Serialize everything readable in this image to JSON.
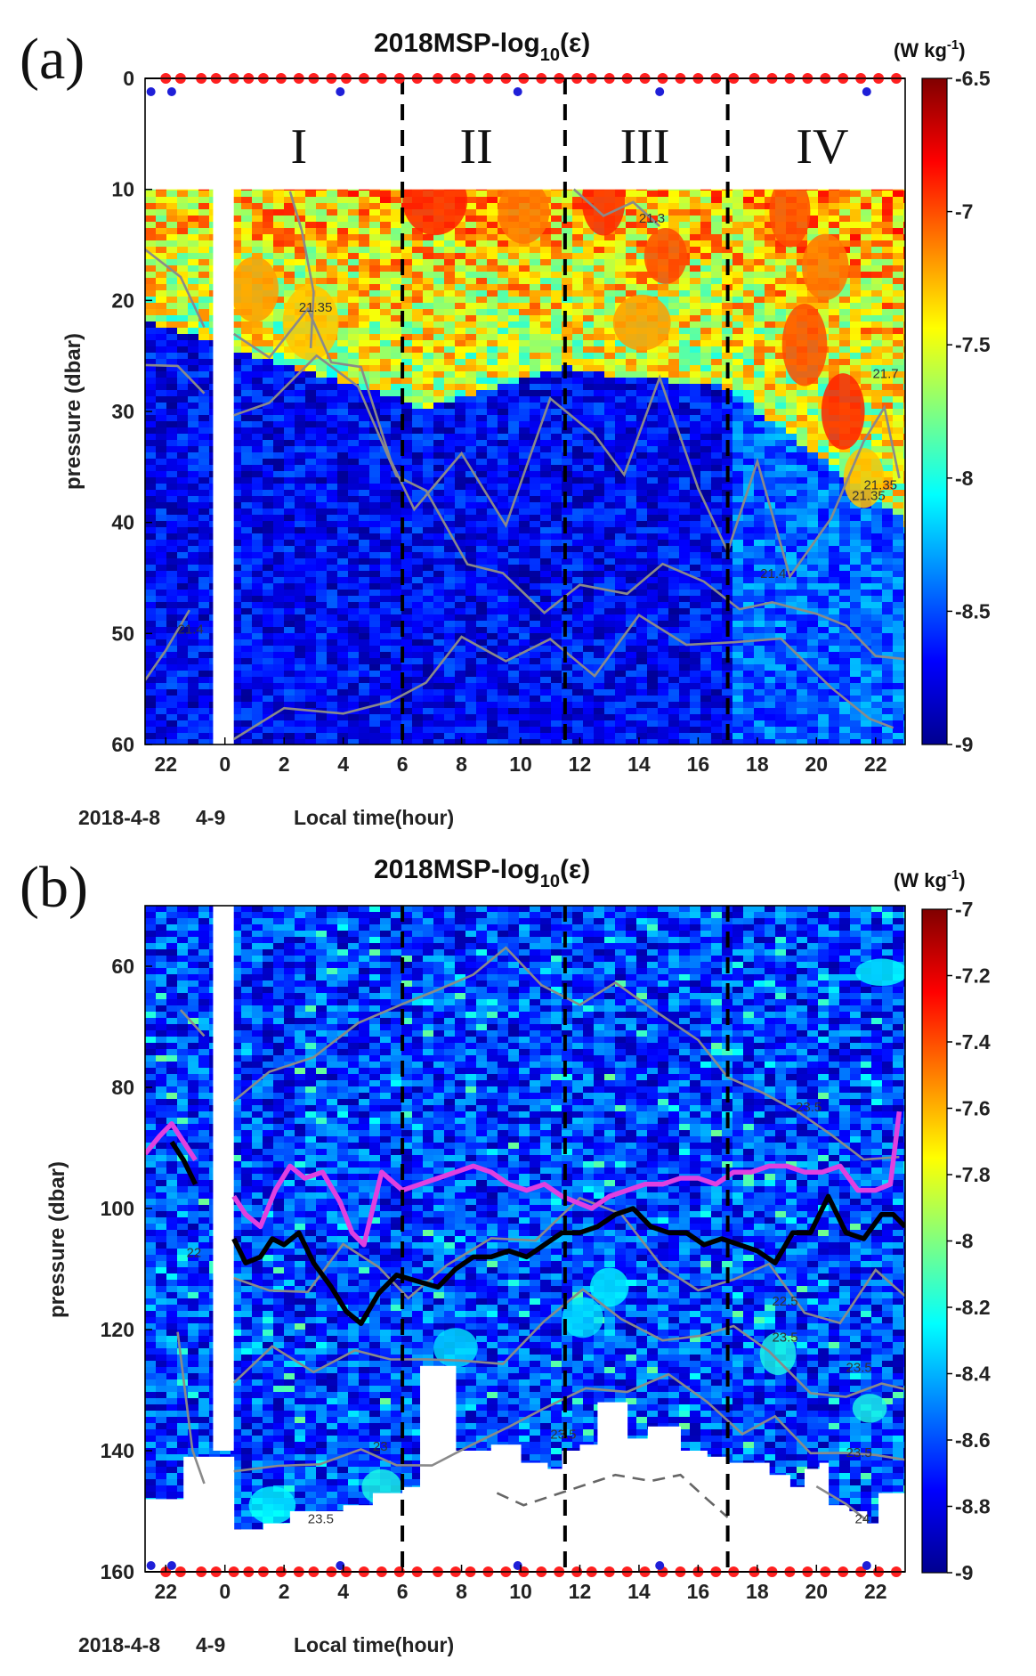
{
  "chart_data": [
    {
      "type": "heatmap",
      "panel_label": "(a)",
      "title": "2018MSP-log",
      "title_sub": "10",
      "title_suffix": "(ε)",
      "xlabel": "Local time(hour)",
      "date_labels": [
        "2018-4-8",
        "4-9"
      ],
      "ylabel": "pressure (dbar)",
      "xlim": [
        21.3,
        47.0
      ],
      "ylim": [
        0,
        60
      ],
      "x_ticks": [
        22,
        24,
        26,
        28,
        30,
        32,
        34,
        36,
        38,
        40,
        42,
        44,
        46
      ],
      "x_tick_labels": [
        "22",
        "0",
        "2",
        "4",
        "6",
        "8",
        "10",
        "12",
        "14",
        "16",
        "18",
        "20",
        "22"
      ],
      "y_ticks": [
        0,
        10,
        20,
        30,
        40,
        50,
        60
      ],
      "y_tick_labels": [
        "0",
        "10",
        "20",
        "30",
        "40",
        "50",
        "60"
      ],
      "regions": [
        "I",
        "II",
        "III",
        "IV"
      ],
      "region_centers": [
        26.5,
        32.5,
        38.2,
        44.2
      ],
      "dashed_lines_x": [
        30.0,
        35.5,
        41.0
      ],
      "data_gap_x": [
        23.6,
        24.3
      ],
      "colorbar": {
        "unit_prefix": "(W kg",
        "unit_sup": "-1",
        "unit_suffix": ")",
        "range": [
          -9,
          -6.5
        ],
        "ticks": [
          -6.5,
          -7,
          -7.5,
          -8,
          -8.5,
          -9
        ],
        "tick_labels": [
          "-6.5",
          "-7",
          "-7.5",
          "-8",
          "-8.5",
          "-9"
        ]
      },
      "contour_labels": [
        "21.3",
        "21.35",
        "21.35",
        "21.35",
        "21.4",
        "21.7",
        "21.4"
      ],
      "red_markers_x": [
        22.0,
        22.5,
        23.2,
        23.7,
        24.3,
        24.8,
        25.3,
        25.9,
        26.5,
        27.0,
        27.6,
        28.1,
        28.7,
        29.3,
        29.9,
        30.5,
        31.2,
        31.8,
        32.3,
        32.9,
        33.5,
        34.1,
        34.7,
        35.3,
        35.9,
        36.4,
        37.0,
        37.6,
        38.2,
        38.8,
        39.4,
        40.0,
        40.6,
        41.2,
        41.9,
        42.5,
        43.1,
        43.7,
        44.3,
        44.9,
        45.5,
        46.1,
        46.7
      ],
      "blue_markers_x": [
        21.5,
        22.2,
        27.9,
        33.9,
        38.7,
        45.7
      ]
    },
    {
      "type": "heatmap",
      "panel_label": "(b)",
      "title": "2018MSP-log",
      "title_sub": "10",
      "title_suffix": "(ε)",
      "xlabel": "Local time(hour)",
      "date_labels": [
        "2018-4-8",
        "4-9"
      ],
      "ylabel": "pressure (dbar)",
      "xlim": [
        21.3,
        47.0
      ],
      "ylim": [
        50,
        160
      ],
      "x_ticks": [
        22,
        24,
        26,
        28,
        30,
        32,
        34,
        36,
        38,
        40,
        42,
        44,
        46
      ],
      "x_tick_labels": [
        "22",
        "0",
        "2",
        "4",
        "6",
        "8",
        "10",
        "12",
        "14",
        "16",
        "18",
        "20",
        "22"
      ],
      "y_ticks": [
        60,
        80,
        100,
        120,
        140,
        160
      ],
      "y_tick_labels": [
        "60",
        "80",
        "100",
        "120",
        "140",
        "160"
      ],
      "dashed_lines_x": [
        30.0,
        35.5,
        41.0
      ],
      "data_gap_x": [
        23.6,
        24.3
      ],
      "colorbar": {
        "unit_prefix": "(W kg",
        "unit_sup": "-1",
        "unit_suffix": ")",
        "range": [
          -9,
          -7
        ],
        "ticks": [
          -7,
          -7.2,
          -7.4,
          -7.6,
          -7.8,
          -8,
          -8.2,
          -8.4,
          -8.6,
          -8.8,
          -9
        ],
        "tick_labels": [
          "-7",
          "-7.2",
          "-7.4",
          "-7.6",
          "-7.8",
          "-8",
          "-8.2",
          "-8.4",
          "-8.6",
          "-8.8",
          "-9"
        ]
      },
      "contour_labels": [
        "22",
        "23.5",
        "23.5",
        "23",
        "23.5",
        "23.5",
        "24",
        "22.5",
        "23.5",
        "23.5"
      ],
      "series": [
        {
          "name": "magenta-depth-line",
          "color": "#e040e0",
          "x": [
            21.3,
            21.8,
            22.2,
            22.6,
            23.0,
            24.3,
            24.7,
            25.2,
            25.7,
            26.2,
            26.7,
            27.3,
            27.9,
            28.3,
            28.7,
            29.3,
            30.0,
            30.6,
            31.2,
            31.8,
            32.4,
            33.0,
            33.6,
            34.2,
            34.8,
            35.4,
            35.9,
            36.4,
            37.0,
            37.6,
            38.2,
            38.8,
            39.4,
            40.0,
            40.6,
            41.2,
            41.8,
            42.4,
            43.0,
            43.6,
            44.2,
            44.8,
            45.4,
            46.0,
            46.5,
            46.8
          ],
          "y": [
            91,
            88,
            86,
            89,
            92,
            98,
            101,
            103,
            97,
            93,
            95,
            94,
            99,
            104,
            106,
            94,
            97,
            96,
            95,
            94,
            93,
            94,
            96,
            97,
            96,
            98,
            99,
            100,
            98,
            97,
            96,
            96,
            95,
            95,
            96,
            94,
            94,
            93,
            93,
            94,
            94,
            93,
            97,
            97,
            96,
            84
          ]
        },
        {
          "name": "black-depth-line",
          "color": "#000000",
          "x": [
            22.2,
            22.6,
            23.0,
            24.3,
            24.7,
            25.2,
            25.6,
            26.0,
            26.5,
            27.0,
            27.6,
            28.1,
            28.6,
            29.2,
            29.8,
            30.5,
            31.2,
            31.8,
            32.4,
            33.0,
            33.6,
            34.2,
            34.8,
            35.4,
            36.0,
            36.6,
            37.2,
            37.8,
            38.4,
            39.0,
            39.6,
            40.2,
            40.8,
            41.4,
            42.0,
            42.6,
            43.2,
            43.8,
            44.4,
            45.0,
            45.6,
            46.2,
            46.6,
            47.0
          ],
          "y": [
            89,
            92,
            96,
            105,
            109,
            108,
            105,
            106,
            104,
            109,
            113,
            117,
            119,
            114,
            111,
            112,
            113,
            110,
            108,
            108,
            107,
            108,
            106,
            104,
            104,
            103,
            101,
            100,
            103,
            104,
            104,
            106,
            105,
            106,
            107,
            109,
            104,
            104,
            98,
            104,
            105,
            101,
            101,
            103
          ]
        }
      ],
      "red_markers_x": [
        22.0,
        22.5,
        23.2,
        23.7,
        24.3,
        24.8,
        25.3,
        25.9,
        26.5,
        27.0,
        27.6,
        28.1,
        28.7,
        29.3,
        29.9,
        30.5,
        31.2,
        31.8,
        32.3,
        32.9,
        33.5,
        34.1,
        34.7,
        35.3,
        35.9,
        36.4,
        37.0,
        37.6,
        38.2,
        38.8,
        39.4,
        40.0,
        40.6,
        41.2,
        41.9,
        42.5,
        43.1,
        43.7,
        44.3,
        44.9,
        45.5,
        46.1,
        46.7
      ],
      "blue_markers_x": [
        21.5,
        22.2,
        27.9,
        33.9,
        38.7,
        45.7
      ]
    }
  ]
}
